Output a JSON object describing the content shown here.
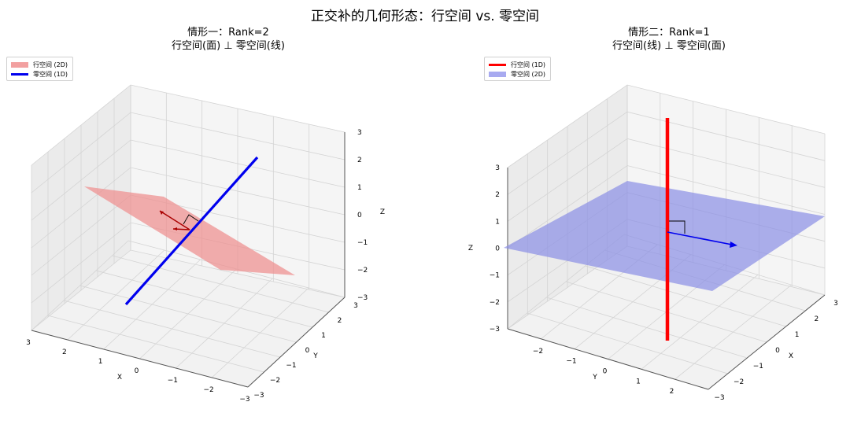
{
  "suptitle": "正交补的几何形态：行空间 vs. 零空间",
  "colors": {
    "pane_floor": "#f2f2f2",
    "pane_wall_left": "#ebebeb",
    "pane_wall_right": "#f5f5f5",
    "grid": "#d4d4d4",
    "axis": "#555555",
    "red_plane": "#ef8f8f",
    "blue_plane": "#8a8ee6",
    "red_line": "#ff0000",
    "blue_line": "#0000ee",
    "dark_red": "#aa0000"
  },
  "chart_data": [
    {
      "type": "3d-surface-line",
      "title_line1": "情形一：Rank=2",
      "title_line2": "行空间(面) ⊥ 零空间(线)",
      "legend": [
        {
          "label": "行空间 (2D)",
          "kind": "patch",
          "color": "#f2a0a0"
        },
        {
          "label": "零空间 (1D)",
          "kind": "line",
          "color": "#0000ee"
        }
      ],
      "xlabel": "X",
      "ylabel": "Y",
      "zlabel": "Z",
      "xlim": [
        -3,
        3
      ],
      "ylim": [
        -3,
        3
      ],
      "zlim": [
        -3,
        3
      ],
      "x_ticks": [
        "3",
        "2",
        "1",
        "0",
        "−1",
        "−2",
        "−3"
      ],
      "y_ticks": [
        "−3",
        "−2",
        "−1",
        "0",
        "1",
        "2",
        "3"
      ],
      "z_ticks": [
        "3",
        "2",
        "1",
        "0",
        "−1",
        "−2",
        "−3"
      ],
      "grid": true,
      "legend_position": "upper-left",
      "plane": {
        "name": "行空间 (2D)",
        "normal": [
          1,
          -1,
          1
        ],
        "extent": 1.5
      },
      "line": {
        "name": "零空间 (1D)",
        "direction": [
          1,
          -1,
          1
        ],
        "range": [
          -2.5,
          2.5
        ]
      },
      "vectors": [
        {
          "from": [
            0,
            0,
            0
          ],
          "to": [
            1,
            1,
            0
          ]
        },
        {
          "from": [
            0,
            0,
            0
          ],
          "to": [
            0,
            1,
            1
          ]
        }
      ],
      "right_angle_marker": true
    },
    {
      "type": "3d-surface-line",
      "title_line1": "情形二：Rank=1",
      "title_line2": "行空间(线) ⊥ 零空间(面)",
      "legend": [
        {
          "label": "行空间 (1D)",
          "kind": "line",
          "color": "#ff0000"
        },
        {
          "label": "零空间 (2D)",
          "kind": "patch",
          "color": "#a8aaf0"
        }
      ],
      "xlabel": "X",
      "ylabel": "Y",
      "zlabel": "Z",
      "xlim": [
        -3,
        3
      ],
      "ylim": [
        -3,
        3
      ],
      "zlim": [
        -3,
        3
      ],
      "x_ticks": [
        "−3",
        "−2",
        "−1",
        "0",
        "1",
        "2",
        "3"
      ],
      "y_ticks": [
        "−2",
        "−1",
        "0",
        "1",
        "2"
      ],
      "z_ticks": [
        "3",
        "2",
        "1",
        "0",
        "−1",
        "−2",
        "−3"
      ],
      "grid": true,
      "legend_position": "upper-left",
      "plane": {
        "name": "零空间 (2D)",
        "z": 0,
        "extent": 2.5
      },
      "line": {
        "name": "行空间 (1D)",
        "direction": [
          0,
          0,
          1
        ],
        "range": [
          -3.5,
          4
        ]
      },
      "vectors": [
        {
          "from": [
            0,
            0,
            0
          ],
          "to": [
            2,
            0,
            0
          ]
        }
      ],
      "right_angle_marker": true
    }
  ]
}
